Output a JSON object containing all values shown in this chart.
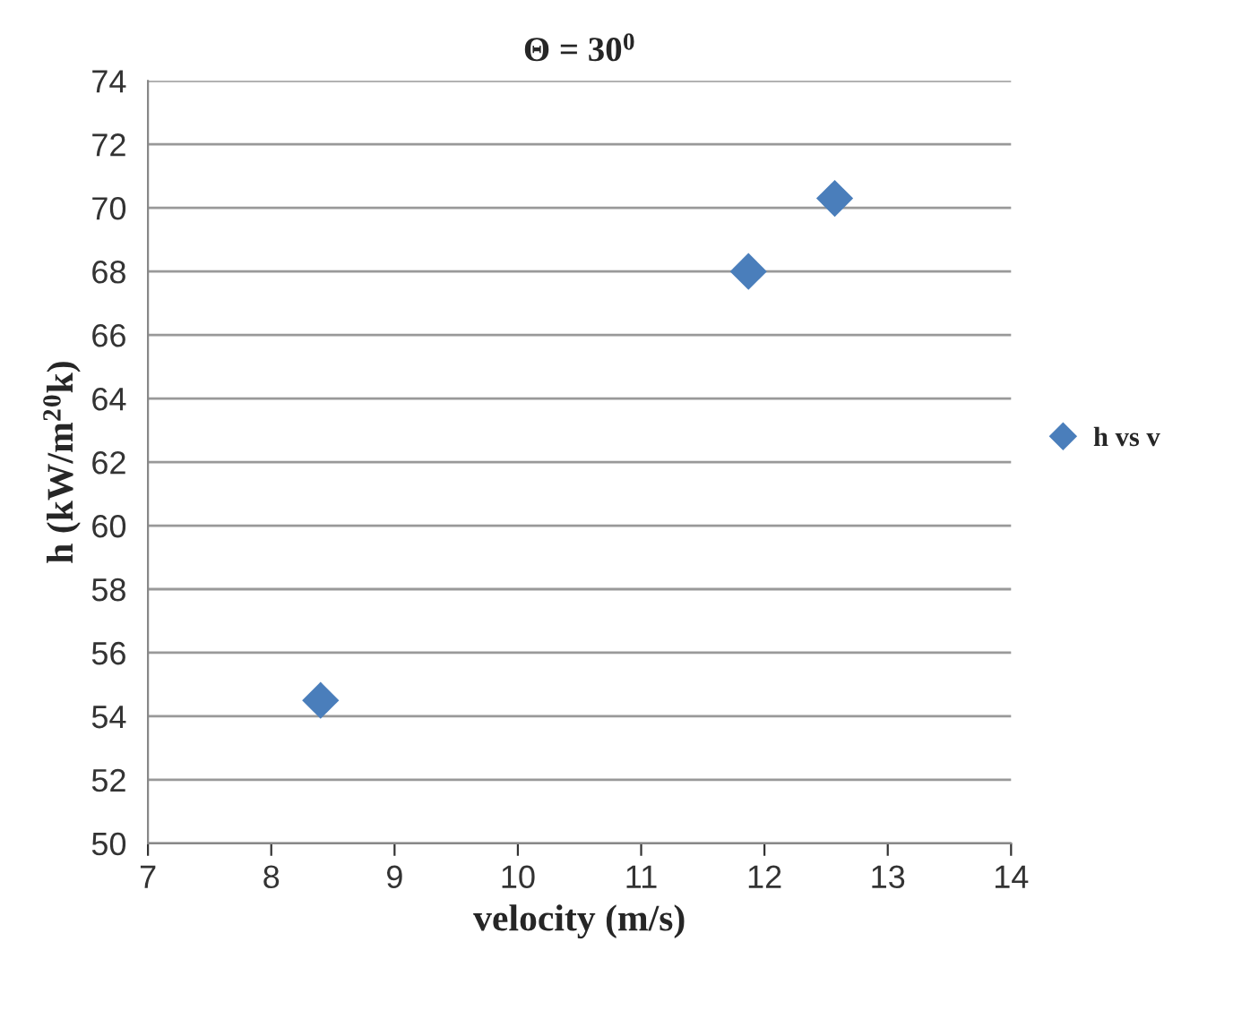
{
  "chart_data": {
    "type": "scatter",
    "title": "Θ = 30$^{0}$",
    "xlabel": "velocity (m/s)",
    "ylabel": "h (kW/m$^{2}$$^{0}$k)",
    "series": [
      {
        "name": "h vs v",
        "color": "#4a7ebb",
        "x": [
          8.4,
          11.87,
          12.57
        ],
        "values": [
          54.5,
          68.0,
          70.3
        ]
      }
    ],
    "xlim": [
      7,
      14
    ],
    "xticks": [
      7,
      8,
      9,
      10,
      11,
      12,
      13,
      14
    ],
    "ylim": [
      50,
      74
    ],
    "yticks": [
      50,
      52,
      54,
      56,
      58,
      60,
      62,
      64,
      66,
      68,
      70,
      72,
      74
    ],
    "grid": "y",
    "legend": "right",
    "marker": "diamond"
  }
}
